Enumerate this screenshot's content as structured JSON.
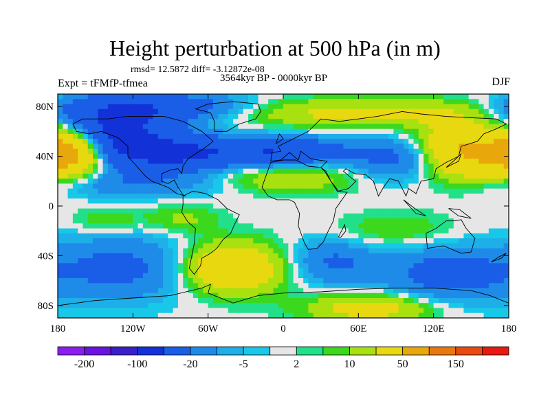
{
  "chart_data": {
    "type": "heatmap",
    "title": "Height perturbation at 500 hPa (in m)",
    "stats_line": "rmsd= 12.5872 diff= -3.12872e-08",
    "period_line": "3564kyr BP - 0000kyr BP",
    "left_label": "Expt = tFMfP-tfmea",
    "right_label": "DJF",
    "x_ticks": [
      {
        "value": -180,
        "label": "180"
      },
      {
        "value": -120,
        "label": "120W"
      },
      {
        "value": -60,
        "label": "60W"
      },
      {
        "value": 0,
        "label": "0"
      },
      {
        "value": 60,
        "label": "60E"
      },
      {
        "value": 120,
        "label": "120E"
      },
      {
        "value": 180,
        "label": "180"
      }
    ],
    "y_ticks": [
      {
        "value": 80,
        "label": "80N"
      },
      {
        "value": 40,
        "label": "40N"
      },
      {
        "value": 0,
        "label": "0"
      },
      {
        "value": -40,
        "label": "40S"
      },
      {
        "value": -80,
        "label": "80S"
      }
    ],
    "xlim": [
      -180,
      180
    ],
    "ylim": [
      -90,
      90
    ],
    "colorbar": {
      "colors": [
        "#8b1df0",
        "#6a13e0",
        "#3a20c8",
        "#1232d8",
        "#1a5ee8",
        "#1e8be8",
        "#1eaee8",
        "#18c8e8",
        "#e6e6e6",
        "#22e08a",
        "#3cd81e",
        "#a8e010",
        "#e8d810",
        "#e8a80c",
        "#e87810",
        "#e84a10",
        "#e81a10"
      ],
      "labels": [
        {
          "after_box": 1,
          "text": "-200"
        },
        {
          "after_box": 3,
          "text": "-100"
        },
        {
          "after_box": 5,
          "text": "-20"
        },
        {
          "after_box": 7,
          "text": "-5"
        },
        {
          "after_box": 9,
          "text": "2"
        },
        {
          "after_box": 11,
          "text": "10"
        },
        {
          "after_box": 13,
          "text": "50"
        },
        {
          "after_box": 15,
          "text": "150"
        }
      ]
    },
    "anomaly_centers": [
      {
        "lon": -170,
        "lat": 45,
        "amp": 80,
        "slon": 18,
        "slat": 14
      },
      {
        "lon": -140,
        "lat": 62,
        "amp": -60,
        "slon": 35,
        "slat": 14
      },
      {
        "lon": -90,
        "lat": 42,
        "amp": -55,
        "slon": 40,
        "slat": 10
      },
      {
        "lon": 0,
        "lat": 44,
        "amp": -45,
        "slon": 35,
        "slat": 8
      },
      {
        "lon": -100,
        "lat": 80,
        "amp": -35,
        "slon": 50,
        "slat": 8
      },
      {
        "lon": 30,
        "lat": 75,
        "amp": 22,
        "slon": 50,
        "slat": 8
      },
      {
        "lon": 120,
        "lat": 75,
        "amp": 15,
        "slon": 40,
        "slat": 8
      },
      {
        "lon": 145,
        "lat": 45,
        "amp": 55,
        "slon": 25,
        "slat": 16
      },
      {
        "lon": 90,
        "lat": 38,
        "amp": -25,
        "slon": 25,
        "slat": 12
      },
      {
        "lon": 0,
        "lat": 22,
        "amp": 20,
        "slon": 40,
        "slat": 8
      },
      {
        "lon": -120,
        "lat": 18,
        "amp": -18,
        "slon": 55,
        "slat": 8
      },
      {
        "lon": -80,
        "lat": -10,
        "amp": 12,
        "slon": 20,
        "slat": 8
      },
      {
        "lon": -140,
        "lat": -12,
        "amp": 10,
        "slon": 20,
        "slat": 7
      },
      {
        "lon": -130,
        "lat": -50,
        "amp": -25,
        "slon": 40,
        "slat": 18
      },
      {
        "lon": -40,
        "lat": -50,
        "amp": 45,
        "slon": 28,
        "slat": 14
      },
      {
        "lon": 40,
        "lat": -45,
        "amp": -22,
        "slon": 25,
        "slat": 13
      },
      {
        "lon": 130,
        "lat": -55,
        "amp": -28,
        "slon": 35,
        "slat": 16
      },
      {
        "lon": 70,
        "lat": -82,
        "amp": 30,
        "slon": 35,
        "slat": 8
      },
      {
        "lon": 90,
        "lat": -20,
        "amp": 10,
        "slon": 35,
        "slat": 10
      }
    ]
  }
}
